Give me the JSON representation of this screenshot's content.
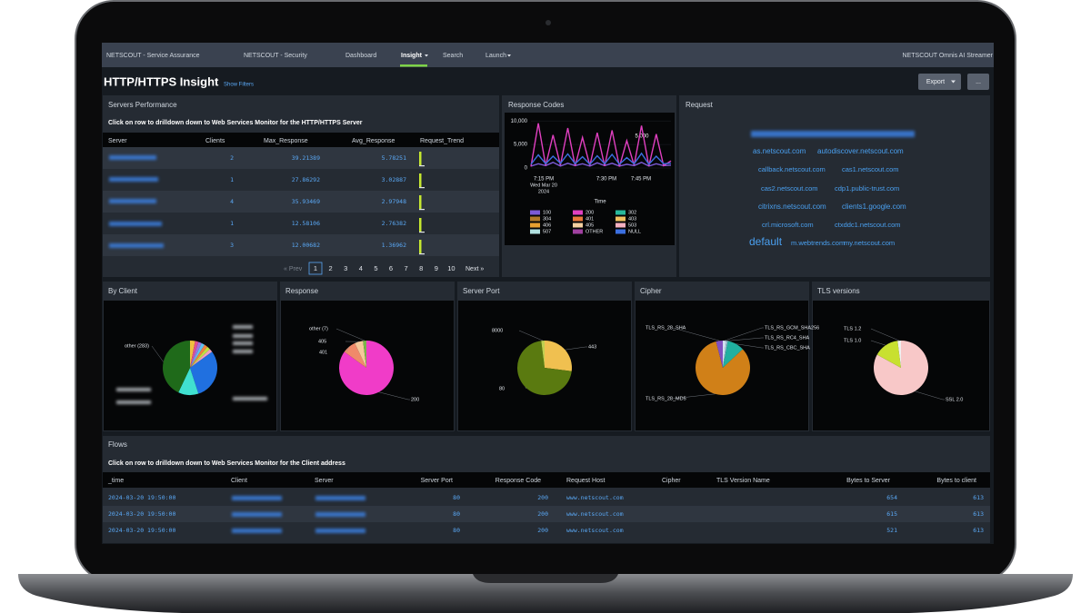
{
  "nav": {
    "items": [
      "NETSCOUT - Service Assurance",
      "NETSCOUT - Security",
      "Dashboard",
      "Insight",
      "Search",
      "Launch"
    ],
    "product": "NETSCOUT Omnis AI Streamer"
  },
  "header": {
    "title": "HTTP/HTTPS Insight",
    "show_filters": "Show Filters",
    "export": "Export",
    "more": "..."
  },
  "servers": {
    "title": "Servers Performance",
    "subtitle": "Click on row to drilldown down to Web Services Monitor for the HTTP/HTTPS Server",
    "columns": [
      "Server",
      "Clients",
      "Max_Response",
      "Avg_Response",
      "Request_Trend"
    ],
    "rows": [
      [
        "2",
        "39.21389",
        "5.78251"
      ],
      [
        "1",
        "27.86292",
        "3.02887"
      ],
      [
        "4",
        "35.93469",
        "2.97948"
      ],
      [
        "1",
        "12.58106",
        "2.76382"
      ],
      [
        "3",
        "12.00682",
        "1.36962"
      ]
    ],
    "pagination": {
      "prev": "« Prev",
      "pages": [
        "1",
        "2",
        "3",
        "4",
        "5",
        "6",
        "7",
        "8",
        "9",
        "10"
      ],
      "next": "Next »"
    }
  },
  "request": {
    "title": "Request",
    "words": [
      "as.netscout.com",
      "autodiscover.netscout.com",
      "callback.netscout.com",
      "cas1.netscout.com",
      "cas2.netscout.com",
      "cdp1.public-trust.com",
      "citrixns.netscout.com",
      "clients1.google.com",
      "crl.microsoft.com",
      "ctxddc1.netscout.com",
      "default",
      "m.webtrends.com",
      "my.netscout.com"
    ]
  },
  "chart_data": [
    {
      "type": "line",
      "title": "Response Codes",
      "x_label": "Time",
      "x_ticks": [
        {
          "label": "7:15 PM",
          "sub": "Wed Mar 20",
          "year": "2024"
        },
        {
          "label": "7:30 PM"
        },
        {
          "label": "7:45 PM"
        }
      ],
      "ylim": [
        0,
        11000
      ],
      "yticks": [
        0,
        {
          "value": 5000,
          "label": "5,000"
        },
        {
          "value": 10000,
          "label": "10,000"
        }
      ],
      "annotation": "5,000",
      "series": [
        {
          "name": "100",
          "color": "#7b5bd6",
          "values": [
            400,
            900,
            500,
            1200,
            400,
            1000,
            500,
            900,
            400,
            1100,
            500,
            1000,
            400,
            800,
            500,
            1200,
            400,
            900,
            500,
            600
          ]
        },
        {
          "name": "200",
          "color": "#e040c0",
          "values": [
            300,
            9500,
            500,
            7000,
            600,
            8500,
            400,
            6500,
            500,
            7500,
            400,
            8000,
            300,
            5800,
            600,
            9000,
            400,
            7200,
            500,
            1500
          ]
        },
        {
          "name": "302",
          "color": "#29b89b"
        },
        {
          "name": "304",
          "color": "#b07a2a"
        },
        {
          "name": "401",
          "color": "#e8783a"
        },
        {
          "name": "403",
          "color": "#f0c060"
        },
        {
          "name": "406",
          "color": "#e8a030"
        },
        {
          "name": "405",
          "color": "#f5d0a0"
        },
        {
          "name": "503",
          "color": "#f5b0c0"
        },
        {
          "name": "507",
          "color": "#b0e0e0"
        },
        {
          "name": "OTHER",
          "color": "#a040a0"
        },
        {
          "name": "NULL",
          "color": "#3b6fe0",
          "values": [
            800,
            2800,
            900,
            2500,
            1000,
            3000,
            900,
            2400,
            800,
            2600,
            900,
            2900,
            800,
            2200,
            900,
            3100,
            800,
            2500,
            900,
            1000
          ]
        }
      ]
    },
    {
      "type": "pie",
      "title": "By Client",
      "categories": [
        null,
        null,
        null,
        null,
        null,
        null,
        null,
        null,
        null,
        "other (283)"
      ],
      "values": [
        3,
        2,
        2,
        2,
        2,
        2,
        2,
        30,
        12,
        43
      ],
      "colors": [
        "#f0c040",
        "#e05090",
        "#a070e0",
        "#60c0f0",
        "#f08040",
        "#c0e040",
        "#f0a0c0",
        "#2070e0",
        "#40e0d0",
        "#1f6a1a"
      ]
    },
    {
      "type": "pie",
      "title": "Response",
      "categories": [
        "200",
        "401",
        "405",
        "other (7)"
      ],
      "values": [
        85,
        8,
        5,
        2
      ],
      "colors": [
        "#f03cc8",
        "#f08a6a",
        "#f5c89a",
        "#7ab648"
      ]
    },
    {
      "type": "pie",
      "title": "Server Port",
      "categories": [
        "443",
        "80",
        "8000"
      ],
      "values": [
        27,
        71,
        2
      ],
      "colors": [
        "#f0c050",
        "#5a7a10",
        "#c0d050"
      ]
    },
    {
      "type": "pie",
      "title": "Cipher",
      "categories": [
        "TLS_RS_GCM_SHA256",
        "TLS_RS_RC4_SHA",
        "TLS_RS_CBC_SHA",
        "TLS_RS_28_MD5",
        "TLS_RS_28_SHA"
      ],
      "values": [
        2,
        1,
        10,
        83,
        4
      ],
      "colors": [
        "#d0e0f0",
        "#90c0d0",
        "#20b0a0",
        "#d08018",
        "#8050c0"
      ]
    },
    {
      "type": "pie",
      "title": "TLS versions",
      "categories": [
        "SSL 2.0",
        "TLS 1.0",
        "TLS 1.2"
      ],
      "values": [
        83,
        15,
        2
      ],
      "colors": [
        "#f8c8c8",
        "#c8e030",
        "#f0f0f0"
      ]
    }
  ],
  "flows": {
    "title": "Flows",
    "subtitle": "Click on row to drilldown down to Web Services Monitor for the Client address",
    "columns": [
      "_time",
      "Client",
      "Server",
      "Server Port",
      "Response Code",
      "Request Host",
      "Cipher",
      "TLS Version Name",
      "Bytes to Server",
      "Bytes to client"
    ],
    "rows": [
      [
        "2024-03-20 19:50:00",
        "80",
        "200",
        "www.netscout.com",
        "654",
        "613"
      ],
      [
        "2024-03-20 19:50:00",
        "80",
        "200",
        "www.netscout.com",
        "615",
        "613"
      ],
      [
        "2024-03-20 19:50:00",
        "80",
        "200",
        "www.netscout.com",
        "521",
        "613"
      ]
    ]
  }
}
